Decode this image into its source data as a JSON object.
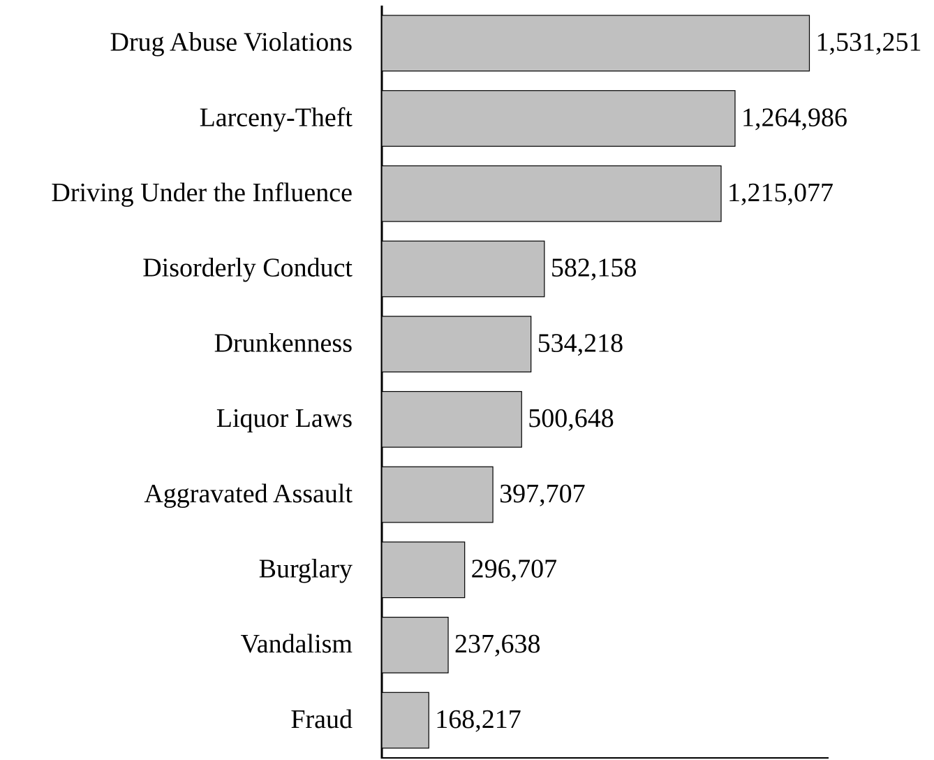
{
  "chart_data": {
    "type": "barh",
    "categories": [
      "Drug Abuse Violations",
      "Larceny-Theft",
      "Driving Under the Influence",
      "Disorderly Conduct",
      "Drunkenness",
      "Liquor Laws",
      "Aggravated Assault",
      "Burglary",
      "Vandalism",
      "Fraud"
    ],
    "values": [
      1531251,
      1264986,
      1215077,
      582158,
      534218,
      500648,
      397707,
      296707,
      237638,
      168217
    ],
    "value_labels": [
      "1,531,251",
      "1,264,986",
      "1,215,077",
      "582,158",
      "534,218",
      "500,648",
      "397,707",
      "296,707",
      "237,638",
      "168,217"
    ],
    "color": "#c0c0c0",
    "xlim": [
      0,
      1600000
    ],
    "grid": false
  }
}
